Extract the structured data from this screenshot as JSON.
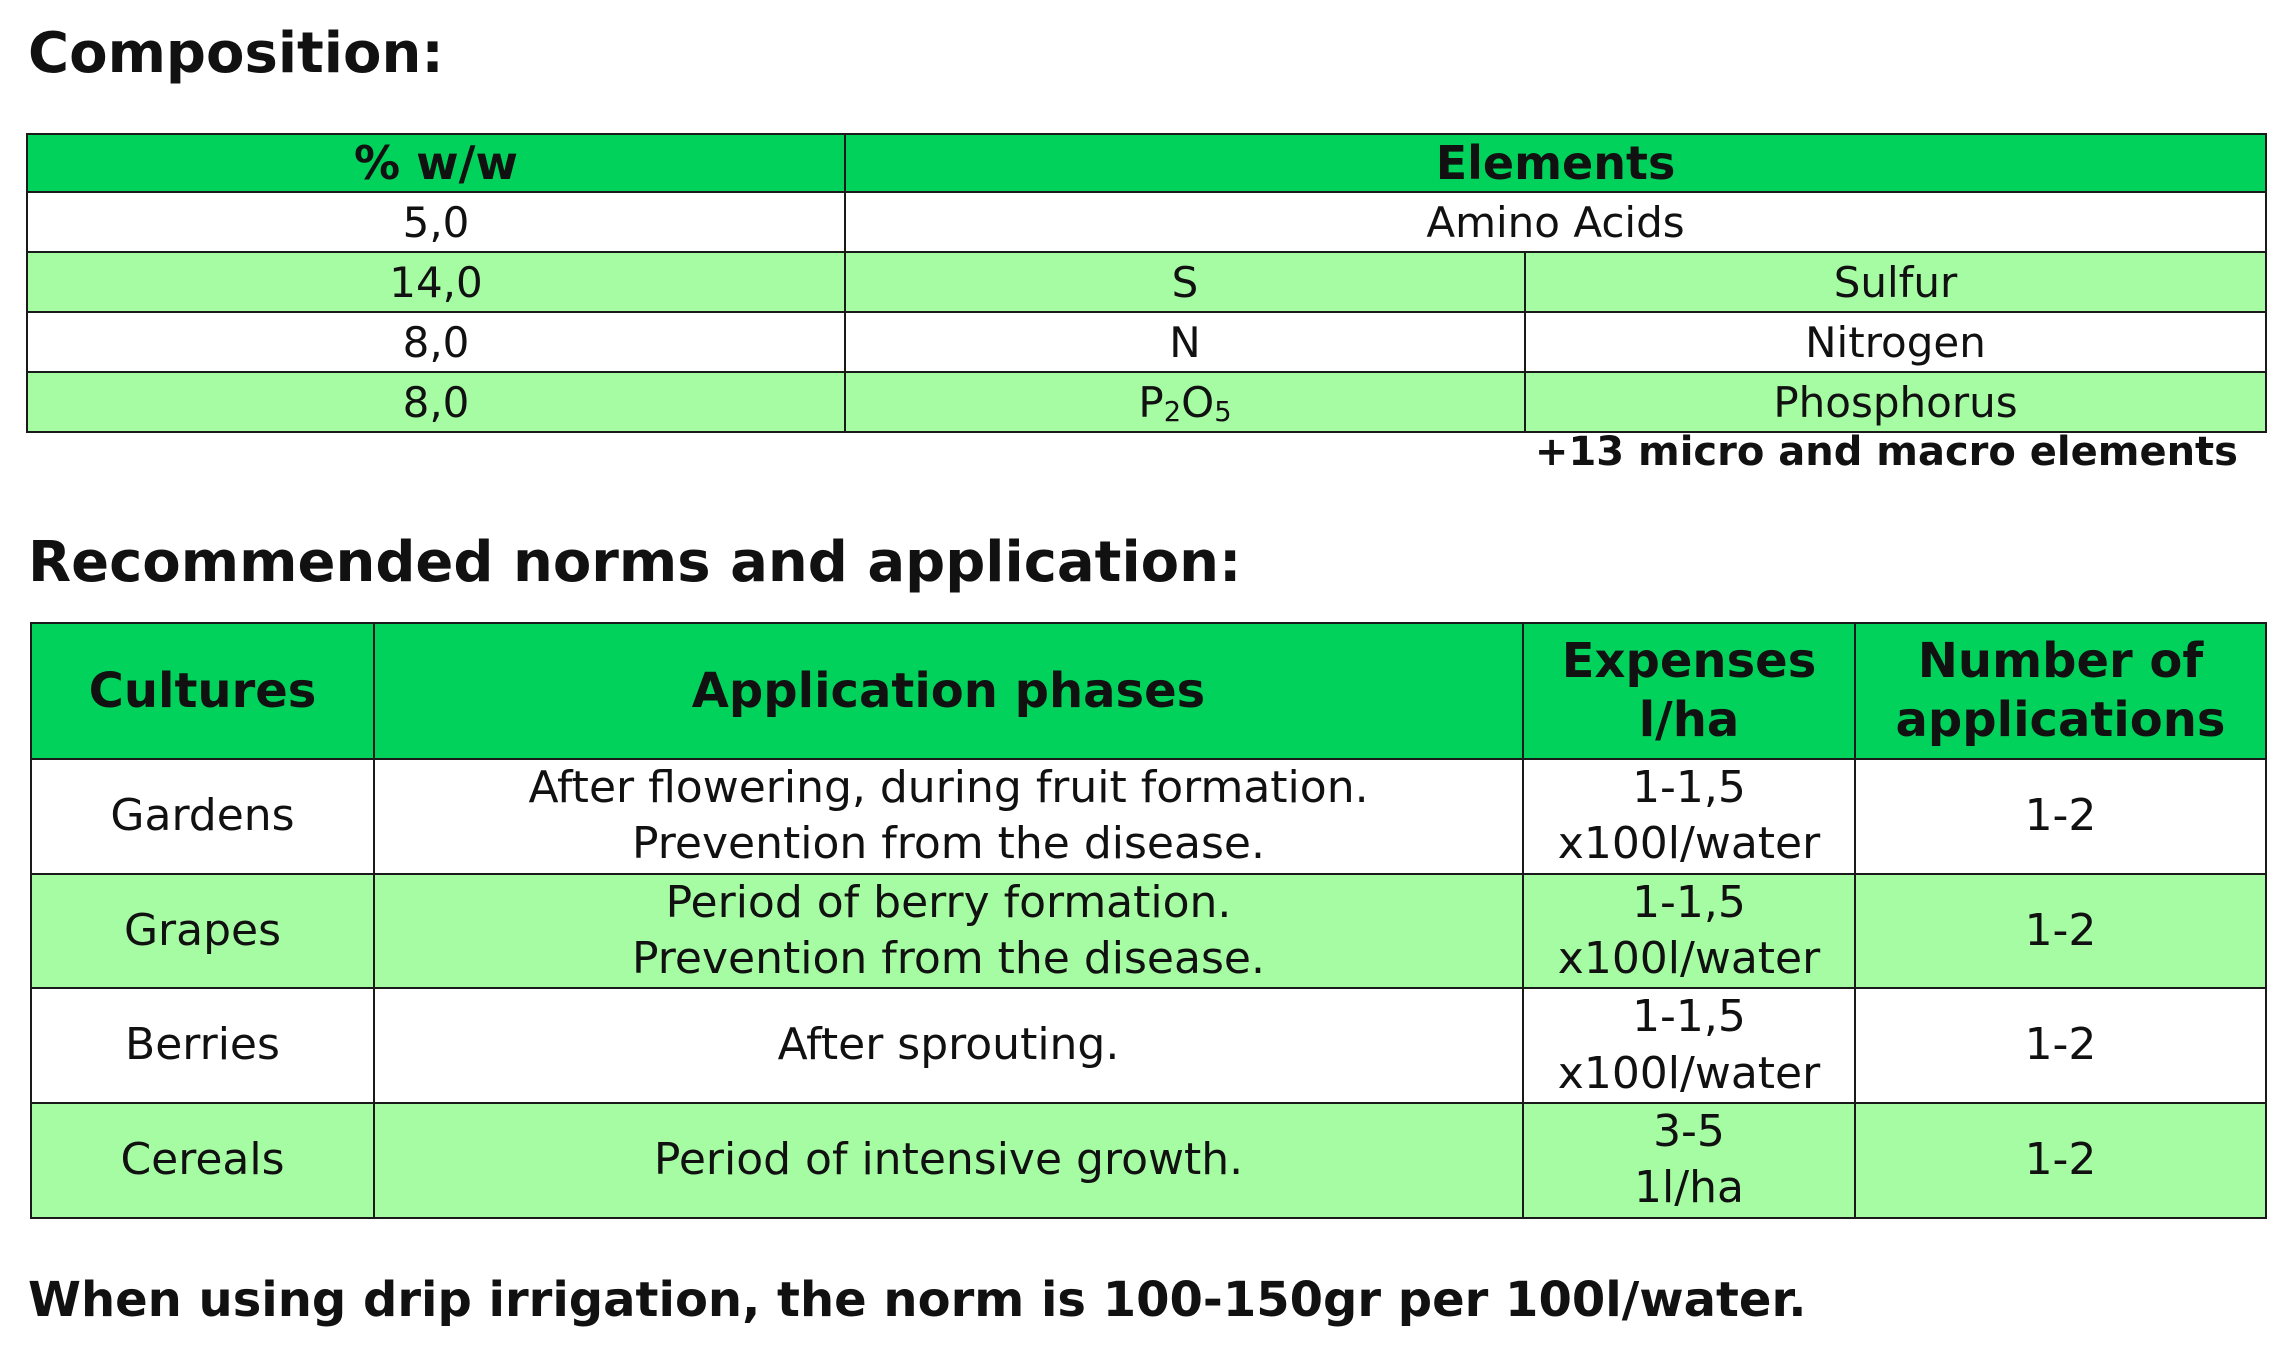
{
  "composition": {
    "title": "Composition:",
    "headers": {
      "percent": "% w/w",
      "elements": "Elements"
    },
    "rows": [
      {
        "percent": "5,0",
        "symbol": "",
        "name": "Amino Acids"
      },
      {
        "percent": "14,0",
        "symbol": "S",
        "name": "Sulfur"
      },
      {
        "percent": "8,0",
        "symbol": "N",
        "name": "Nitrogen"
      },
      {
        "percent": "8,0",
        "symbol_main": "P",
        "symbol_sub1": "2",
        "symbol_mid": "O",
        "symbol_sub2": "5",
        "name": "Phosphorus"
      }
    ],
    "note": "+13 micro and macro elements"
  },
  "norms": {
    "title": "Recommended norms and application:",
    "headers": {
      "cultures": "Cultures",
      "phases": "Application phases",
      "expenses_line1": "Expenses",
      "expenses_line2": "l/ha",
      "number_line1": "Number of",
      "number_line2": "applications"
    },
    "rows": [
      {
        "culture": "Gardens",
        "phase_line1": "After flowering, during fruit formation.",
        "phase_line2": "Prevention from the disease.",
        "expense_line1": "1-1,5",
        "expense_line2": "x100l/water",
        "applications": "1-2"
      },
      {
        "culture": "Grapes",
        "phase_line1": "Period of berry formation.",
        "phase_line2": "Prevention from the disease.",
        "expense_line1": "1-1,5",
        "expense_line2": "x100l/water",
        "applications": "1-2"
      },
      {
        "culture": "Berries",
        "phase_line1": "After sprouting.",
        "phase_line2": "",
        "expense_line1": "1-1,5",
        "expense_line2": "x100l/water",
        "applications": "1-2"
      },
      {
        "culture": "Cereals",
        "phase_line1": "Period of intensive growth.",
        "phase_line2": "",
        "expense_line1": "3-5",
        "expense_line2": "1l/ha",
        "applications": "1-2"
      }
    ]
  },
  "footnote": "When using drip irrigation, the norm is 100-150gr per 100l/water.",
  "colors": {
    "header_green": "#00d25c",
    "row_light_green": "#a6fca3",
    "row_white": "#ffffff",
    "border": "#1a1a1a"
  }
}
